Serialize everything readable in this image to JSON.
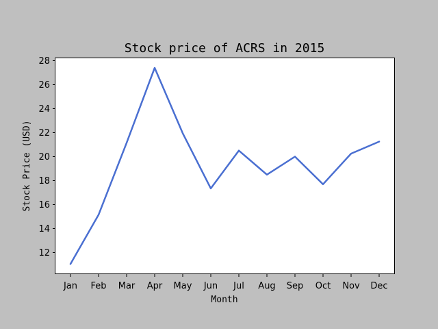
{
  "chart_data": {
    "type": "line",
    "title": "Stock price of ACRS in 2015",
    "xlabel": "Month",
    "ylabel": "Stock Price (USD)",
    "categories": [
      "Jan",
      "Feb",
      "Mar",
      "Apr",
      "May",
      "Jun",
      "Jul",
      "Aug",
      "Sep",
      "Oct",
      "Nov",
      "Dec"
    ],
    "series": [
      {
        "name": "",
        "color": "#4a6fd1",
        "values": [
          11.05,
          15.15,
          21.15,
          27.4,
          21.95,
          17.35,
          20.5,
          18.5,
          20.0,
          17.7,
          20.25,
          21.25
        ]
      }
    ],
    "ylim": [
      10.2,
      28.2
    ],
    "yticks": [
      12,
      14,
      16,
      18,
      20,
      22,
      24,
      26,
      28
    ],
    "grid": false,
    "legend": "none"
  }
}
